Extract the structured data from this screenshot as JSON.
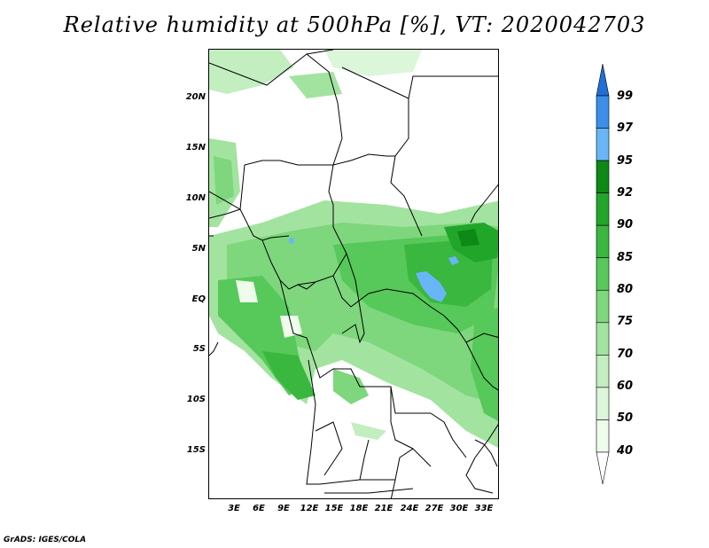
{
  "title": "Relative humidity at 500hPa [%], VT: 2020042703",
  "credit": "GrADS: IGES/COLA",
  "y_labels": [
    "20N",
    "15N",
    "10N",
    "5N",
    "EQ",
    "5S",
    "10S",
    "15S"
  ],
  "x_labels": [
    "3E",
    "6E",
    "9E",
    "12E",
    "15E",
    "18E",
    "21E",
    "24E",
    "27E",
    "30E",
    "33E"
  ],
  "colorbar": {
    "labels": [
      "99",
      "97",
      "95",
      "92",
      "90",
      "85",
      "80",
      "75",
      "70",
      "60",
      "50",
      "40"
    ],
    "colors": [
      "#1f6fd6",
      "#3b8fea",
      "#68b6f7",
      "#0c8a15",
      "#22a62a",
      "#3ab73e",
      "#57c85a",
      "#7ed67d",
      "#a3e3a0",
      "#c3eec0",
      "#dcf6d9",
      "#eefcec",
      "#ffffff"
    ]
  }
}
